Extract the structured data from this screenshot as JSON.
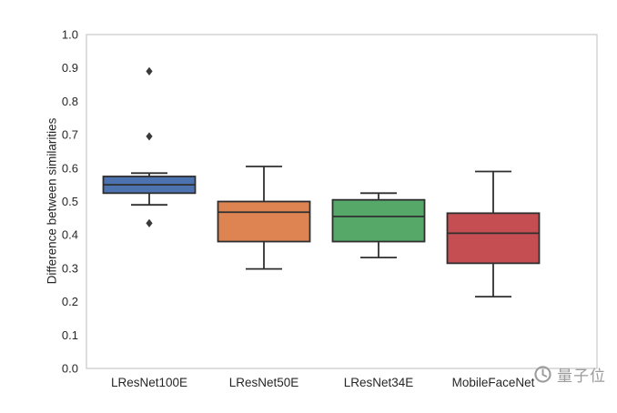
{
  "chart_data": {
    "type": "box",
    "title": "",
    "xlabel": "",
    "ylabel": "Difference between similarities",
    "ylim": [
      0.0,
      1.0
    ],
    "y_ticks": [
      0.0,
      0.1,
      0.2,
      0.3,
      0.4,
      0.5,
      0.6,
      0.7,
      0.8,
      0.9,
      1.0
    ],
    "grid": false,
    "legend": "none",
    "categories": [
      "LResNet100E",
      "LResNet50E",
      "LResNet34E",
      "MobileFaceNet"
    ],
    "series": [
      {
        "name": "LResNet100E",
        "color": "#4C72B0",
        "whisker_low": 0.49,
        "q1": 0.525,
        "median": 0.55,
        "q3": 0.575,
        "whisker_high": 0.585,
        "outliers": [
          0.435,
          0.695,
          0.89
        ]
      },
      {
        "name": "LResNet50E",
        "color": "#DD8452",
        "whisker_low": 0.298,
        "q1": 0.38,
        "median": 0.468,
        "q3": 0.5,
        "whisker_high": 0.605,
        "outliers": []
      },
      {
        "name": "LResNet34E",
        "color": "#55A868",
        "whisker_low": 0.332,
        "q1": 0.38,
        "median": 0.455,
        "q3": 0.505,
        "whisker_high": 0.525,
        "outliers": []
      },
      {
        "name": "MobileFaceNet",
        "color": "#C44E52",
        "whisker_low": 0.215,
        "q1": 0.315,
        "median": 0.405,
        "q3": 0.465,
        "whisker_high": 0.59,
        "outliers": []
      }
    ],
    "box_edge_color": "#2f2f2f",
    "outlier_color": "#3a3a3a",
    "spine_color": "#c9c9c9",
    "tick_label_color": "#262626"
  },
  "watermark": {
    "text": "量子位",
    "color": "#9b9b9b"
  }
}
